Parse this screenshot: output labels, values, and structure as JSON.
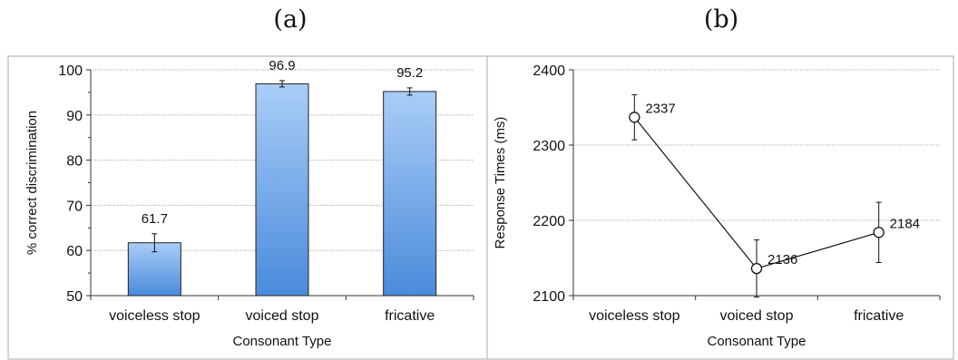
{
  "panels": {
    "a": "(a)",
    "b": "(b)"
  },
  "chart_data": [
    {
      "type": "bar",
      "title": "",
      "xlabel": "Consonant Type",
      "ylabel": "% correct discrimination",
      "ylim": [
        50,
        100
      ],
      "yticks": [
        50,
        60,
        70,
        80,
        90,
        100
      ],
      "categories": [
        "voiceless stop",
        "voiced stop",
        "fricative"
      ],
      "values": [
        61.7,
        96.9,
        95.2
      ],
      "error": [
        2.0,
        0.7,
        0.8
      ],
      "data_labels": [
        "61.7",
        "96.9",
        "95.2"
      ],
      "grid": true,
      "bar_color": "#6ea6ea"
    },
    {
      "type": "line",
      "title": "",
      "xlabel": "Consonant Type",
      "ylabel": "Response Times (ms)",
      "ylim": [
        2100,
        2400
      ],
      "yticks": [
        2100,
        2200,
        2300,
        2400
      ],
      "categories": [
        "voiceless stop",
        "voiced stop",
        "fricative"
      ],
      "values": [
        2337,
        2136,
        2184
      ],
      "error": [
        30,
        38,
        40
      ],
      "data_labels": [
        "2337",
        "2136",
        "2184"
      ],
      "grid": true,
      "marker": "open-circle"
    }
  ]
}
